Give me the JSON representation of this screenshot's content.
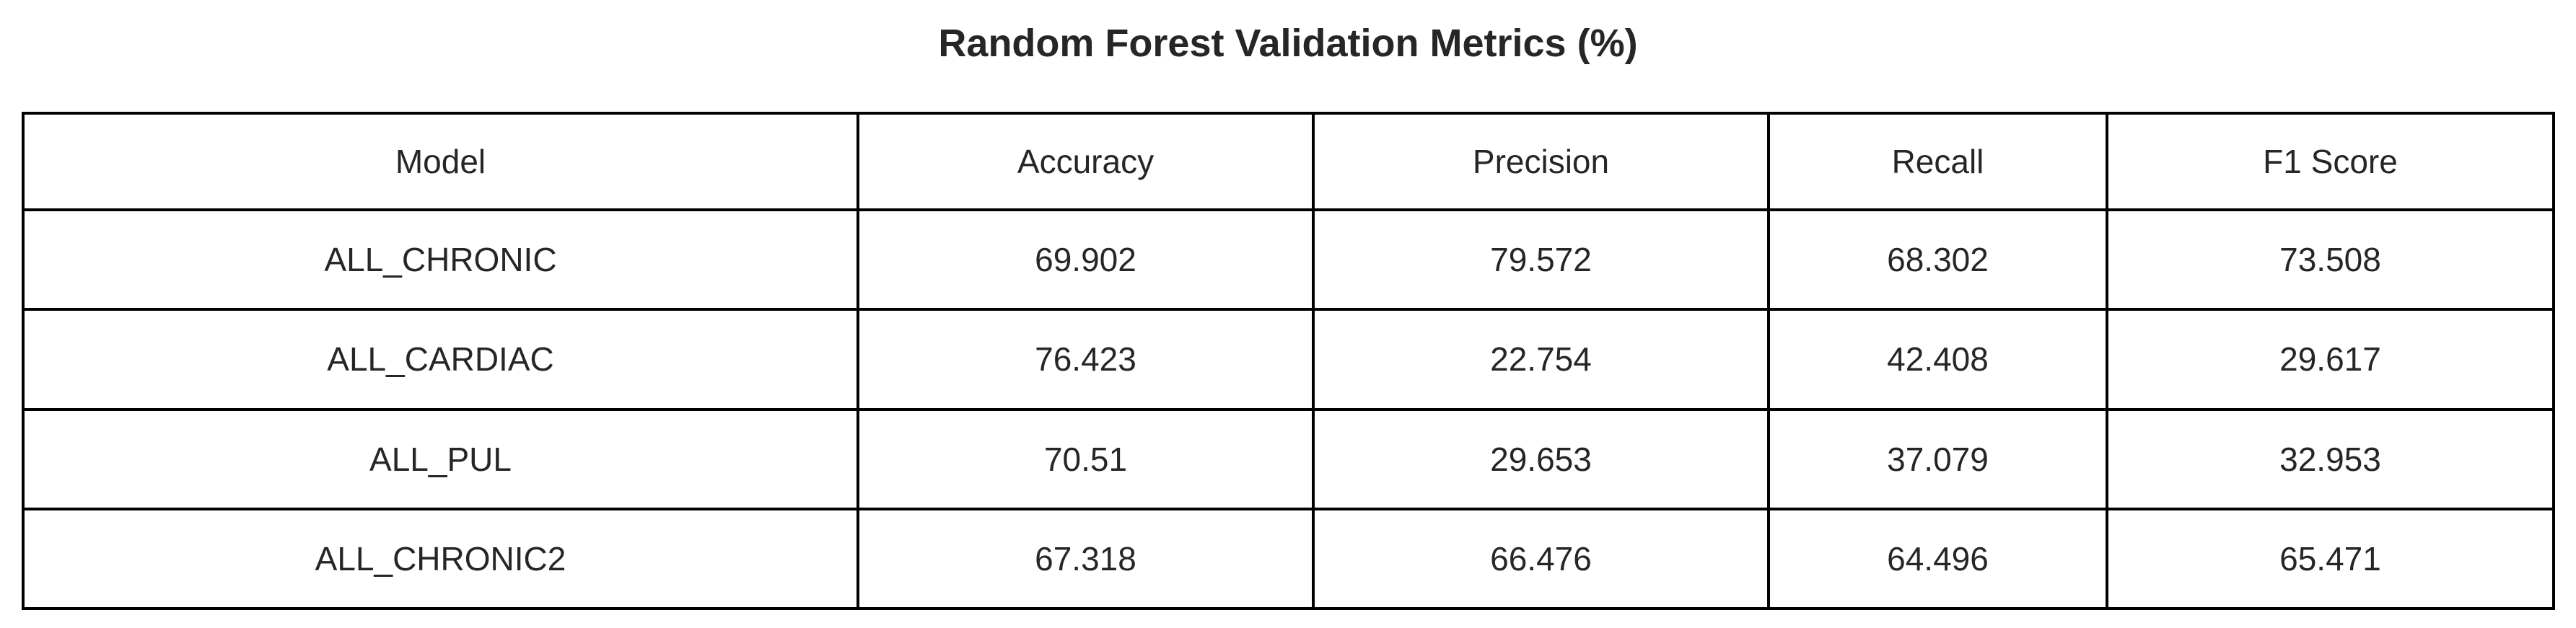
{
  "chart_data": {
    "type": "table",
    "title": "Random Forest Validation Metrics (%)",
    "columns": [
      "Model",
      "Accuracy",
      "Precision",
      "Recall",
      "F1 Score"
    ],
    "rows": [
      [
        "ALL_CHRONIC",
        "69.902",
        "79.572",
        "68.302",
        "73.508"
      ],
      [
        "ALL_CARDIAC",
        "76.423",
        "22.754",
        "42.408",
        "29.617"
      ],
      [
        "ALL_PUL",
        "70.51",
        "29.653",
        "37.079",
        "32.953"
      ],
      [
        "ALL_CHRONIC2",
        "67.318",
        "66.476",
        "64.496",
        "65.471"
      ]
    ],
    "grid": true
  },
  "colors": {
    "text": "#262626",
    "border": "#000000",
    "background": "#ffffff"
  }
}
